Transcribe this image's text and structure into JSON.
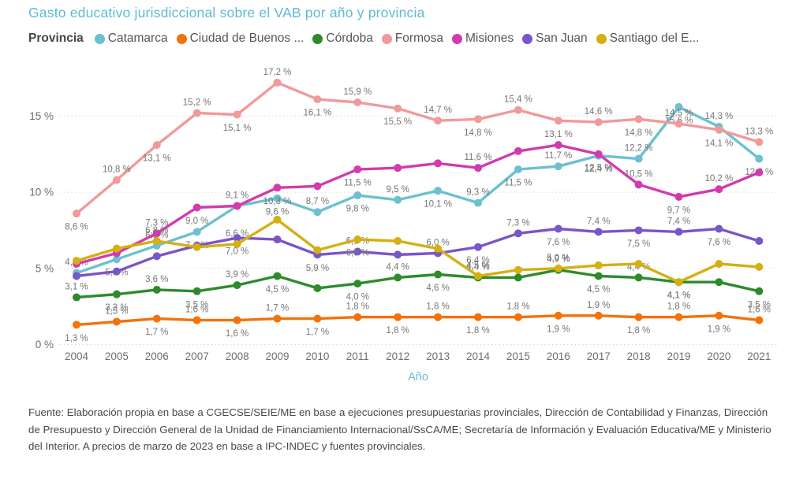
{
  "title": "Gasto educativo jurisdiccional sobre el VAB por año y provincia",
  "legend": {
    "caption": "Provincia",
    "items": [
      {
        "name": "Catamarca",
        "color": "#6cc0d0"
      },
      {
        "name": "Ciudad de Buenos ...",
        "color": "#f2720c"
      },
      {
        "name": "Córdoba",
        "color": "#2e8b2c"
      },
      {
        "name": "Formosa",
        "color": "#f09a9b"
      },
      {
        "name": "Misiones",
        "color": "#d23bb0"
      },
      {
        "name": "San Juan",
        "color": "#7a55c8"
      },
      {
        "name": "Santiago del E...",
        "color": "#d4b011"
      }
    ]
  },
  "chart_data": {
    "type": "line",
    "title": "Gasto educativo jurisdiccional sobre el VAB por año y provincia",
    "xlabel": "Año",
    "ylabel": "",
    "x": [
      2004,
      2005,
      2006,
      2007,
      2008,
      2009,
      2010,
      2011,
      2012,
      2013,
      2014,
      2015,
      2016,
      2017,
      2018,
      2019,
      2020,
      2021
    ],
    "ylim": [
      0,
      18
    ],
    "yticks": [
      {
        "value": 0,
        "label": "0 %"
      },
      {
        "value": 5,
        "label": "5 %"
      },
      {
        "value": 10,
        "label": "10 %"
      },
      {
        "value": 15,
        "label": "15 %"
      }
    ],
    "grid": "horizontal-dotted",
    "legend_position": "top",
    "value_format": "decimal-comma percent, e.g. 15,2 %",
    "series": [
      {
        "name": "Catamarca",
        "color": "#6cc0d0",
        "values": [
          4.7,
          5.6,
          6.5,
          7.4,
          9.1,
          9.6,
          8.7,
          9.8,
          9.5,
          10.1,
          9.3,
          11.5,
          11.7,
          12.4,
          12.2,
          15.6,
          14.3,
          12.2
        ],
        "unlabeled_years": []
      },
      {
        "name": "Ciudad de Buenos ...",
        "color": "#f2720c",
        "values": [
          1.3,
          1.5,
          1.7,
          1.6,
          1.6,
          1.7,
          1.7,
          1.8,
          1.8,
          1.8,
          1.8,
          1.8,
          1.9,
          1.9,
          1.8,
          1.8,
          1.9,
          1.6
        ],
        "unlabeled_years": []
      },
      {
        "name": "Córdoba",
        "color": "#2e8b2c",
        "values": [
          3.1,
          3.3,
          3.6,
          3.5,
          3.9,
          4.5,
          3.7,
          4.0,
          4.4,
          4.6,
          4.4,
          4.4,
          4.9,
          4.5,
          4.4,
          4.1,
          4.1,
          3.5
        ],
        "unlabeled_years": [
          2010,
          2015,
          2020
        ]
      },
      {
        "name": "Formosa",
        "color": "#f09a9b",
        "values": [
          8.6,
          10.8,
          13.1,
          15.2,
          15.1,
          17.2,
          16.1,
          15.9,
          15.5,
          14.7,
          14.8,
          15.4,
          14.7,
          14.6,
          14.8,
          14.5,
          14.1,
          13.3
        ],
        "unlabeled_years": [
          2016
        ]
      },
      {
        "name": "Misiones",
        "color": "#d23bb0",
        "values": [
          5.3,
          6.0,
          7.3,
          9.0,
          9.1,
          10.3,
          10.4,
          11.5,
          11.6,
          11.9,
          11.6,
          12.7,
          13.1,
          12.5,
          10.5,
          9.7,
          10.2,
          11.3
        ],
        "unlabeled_years": [
          2004,
          2005,
          2008,
          2010,
          2012,
          2013,
          2015,
          2021
        ]
      },
      {
        "name": "San Juan",
        "color": "#7a55c8",
        "values": [
          4.5,
          4.8,
          5.8,
          6.5,
          7.0,
          6.9,
          5.9,
          6.1,
          5.9,
          6.0,
          6.4,
          7.3,
          7.6,
          7.4,
          7.5,
          7.4,
          7.6,
          6.8
        ],
        "unlabeled_years": [
          2004,
          2005,
          2006,
          2007,
          2009,
          2012,
          2021
        ]
      },
      {
        "name": "Santiago del E...",
        "color": "#d4b011",
        "values": [
          5.5,
          6.3,
          6.8,
          6.4,
          6.6,
          8.2,
          6.2,
          6.9,
          6.8,
          6.3,
          4.5,
          4.9,
          5.0,
          5.2,
          5.3,
          4.1,
          5.3,
          5.1
        ],
        "unlabeled_years": [
          2004,
          2005,
          2007,
          2009,
          2010,
          2012,
          2013,
          2015,
          2017,
          2018,
          2020,
          2021
        ]
      }
    ]
  },
  "source_note": "Fuente: Elaboración propia en base a CGECSE/SEIE/ME en base a ejecuciones presupuestarias provinciales, Dirección de Contabilidad y Finanzas, Dirección de Presupuesto y Dirección General de la Unidad de Financiamiento Internacional/SsCA/ME; Secretaría de Información y Evaluación Educativa/ME y Ministerio del Interior. A precios de marzo de 2023 en base a IPC-INDEC y fuentes provinciales."
}
